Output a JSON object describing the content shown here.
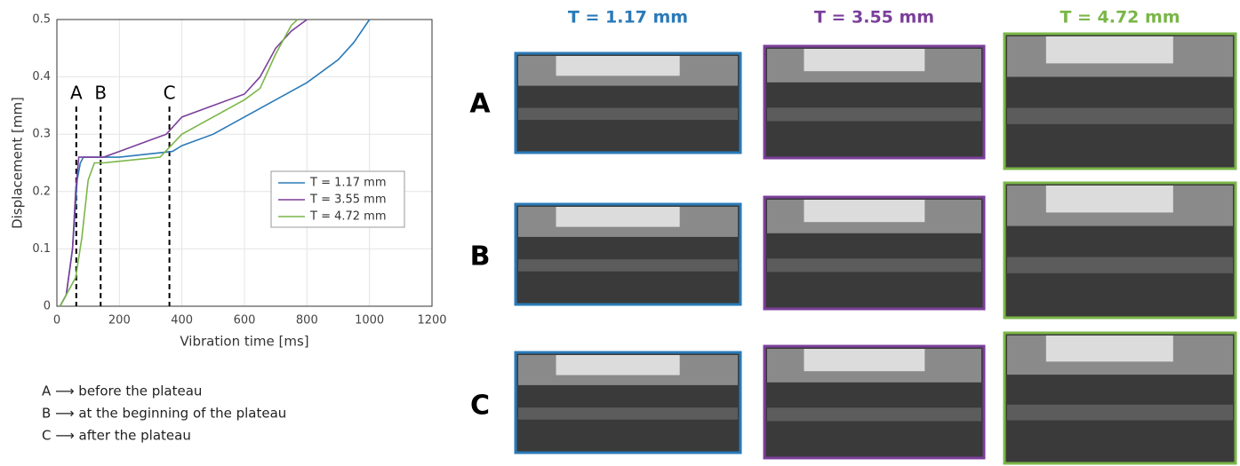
{
  "chart_data": {
    "type": "line",
    "xlabel": "Vibration time [ms]",
    "ylabel": "Displacement [mm]",
    "xlim": [
      0,
      1200
    ],
    "xticks": [
      0,
      200,
      400,
      600,
      800,
      1000,
      1200
    ],
    "ylim": [
      0,
      0.5
    ],
    "yticks": [
      0,
      0.1,
      0.2,
      0.3,
      0.4,
      0.5
    ],
    "grid": true,
    "legend": "right",
    "series": [
      {
        "name": "T = 1.17 mm",
        "color": "#2a7ab8",
        "x": [
          10,
          30,
          50,
          65,
          75,
          85,
          200,
          370,
          400,
          500,
          600,
          700,
          800,
          900,
          950,
          1000
        ],
        "values": [
          0,
          0.02,
          0.1,
          0.22,
          0.25,
          0.26,
          0.26,
          0.27,
          0.28,
          0.3,
          0.33,
          0.36,
          0.39,
          0.43,
          0.46,
          0.5
        ]
      },
      {
        "name": "T = 3.55 mm",
        "color": "#7b3f9a",
        "x": [
          10,
          30,
          50,
          60,
          70,
          150,
          200,
          300,
          350,
          400,
          500,
          600,
          650,
          700,
          750,
          800
        ],
        "values": [
          0,
          0.02,
          0.1,
          0.2,
          0.26,
          0.26,
          0.27,
          0.29,
          0.3,
          0.33,
          0.35,
          0.37,
          0.4,
          0.45,
          0.48,
          0.5
        ]
      },
      {
        "name": "T = 4.72 mm",
        "color": "#7ab648",
        "x": [
          10,
          30,
          60,
          80,
          100,
          120,
          150,
          330,
          400,
          500,
          600,
          650,
          700,
          750,
          770
        ],
        "values": [
          0,
          0.02,
          0.05,
          0.12,
          0.22,
          0.25,
          0.25,
          0.26,
          0.3,
          0.33,
          0.36,
          0.38,
          0.44,
          0.49,
          0.5
        ]
      }
    ],
    "annotations": [
      {
        "label": "A",
        "x": 62
      },
      {
        "label": "B",
        "x": 140
      },
      {
        "label": "C",
        "x": 360
      }
    ]
  },
  "row_labels": [
    "A",
    "B",
    "C"
  ],
  "notes": [
    "A ⟶ before the plateau",
    "B ⟶ at the beginning of the plateau",
    "C ⟶ after the plateau"
  ]
}
